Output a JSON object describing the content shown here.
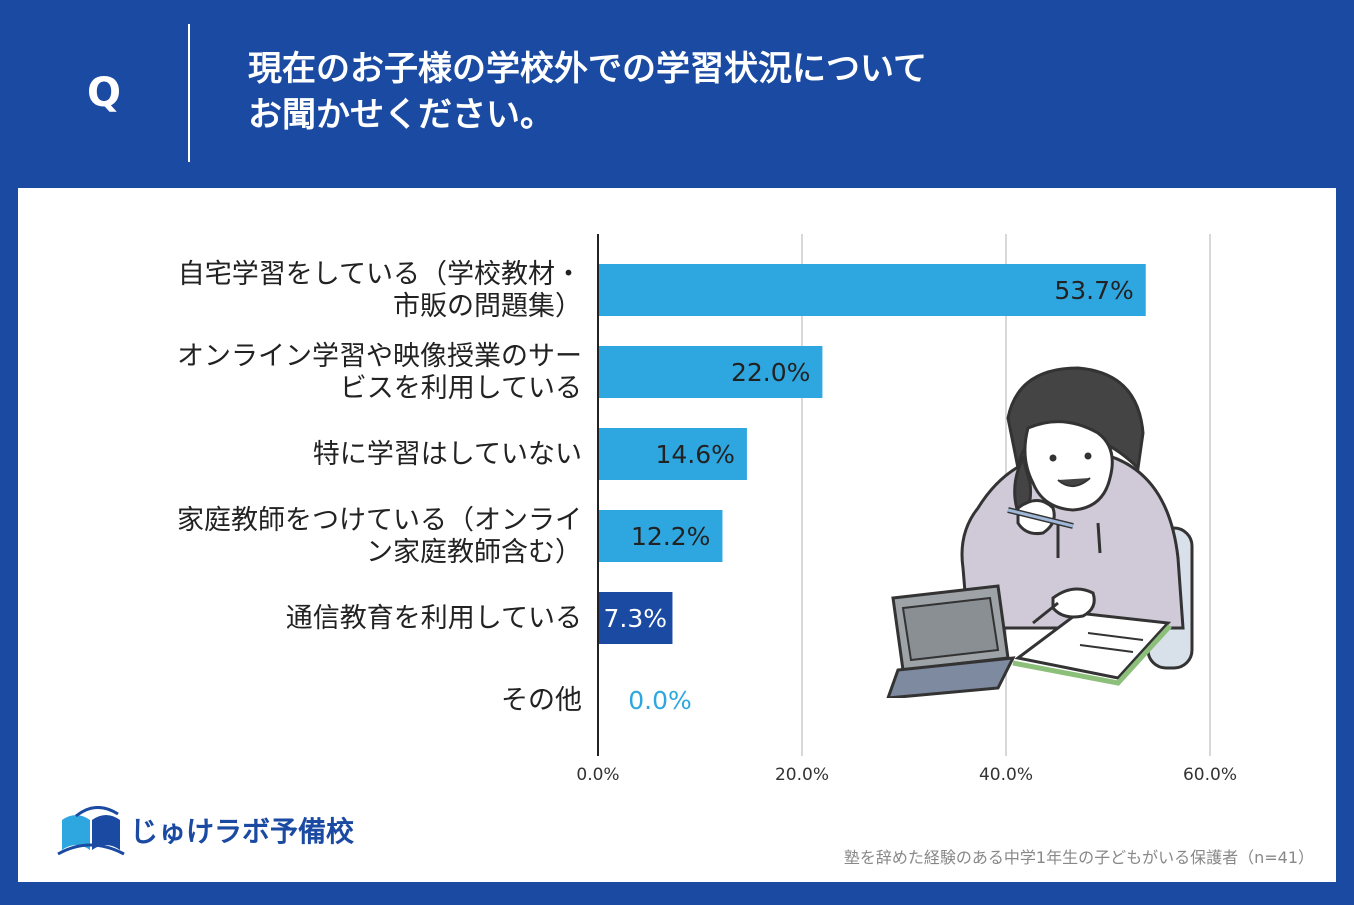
{
  "header": {
    "q_mark": "Q",
    "question_line1": "現在のお子様の学校外での学習状況について",
    "question_line2": "お聞かせください。"
  },
  "colors": {
    "background": "#1a4aa1",
    "bar_light": "#2ea7e0",
    "bar_dark": "#1a4aa1",
    "zero_label": "#2ea7e0"
  },
  "chart_data": {
    "type": "bar",
    "orientation": "horizontal",
    "categories": [
      [
        "自宅学習をしている（学校教材・",
        "市販の問題集）"
      ],
      [
        "オンライン学習や映像授業のサー",
        "ビスを利用している"
      ],
      [
        "特に学習はしていない"
      ],
      [
        "家庭教師をつけている（オンライ",
        "ン家庭教師含む）"
      ],
      [
        "通信教育を利用している"
      ],
      [
        "その他"
      ]
    ],
    "values": [
      53.7,
      22.0,
      14.6,
      12.2,
      7.3,
      0.0
    ],
    "value_labels": [
      "53.7%",
      "22.0%",
      "14.6%",
      "12.2%",
      "7.3%",
      "0.0%"
    ],
    "highlight_index": 4,
    "xlim": [
      0,
      60
    ],
    "xticks": [
      0,
      20,
      40,
      60
    ],
    "xtick_labels": [
      "0.0%",
      "20.0%",
      "40.0%",
      "60.0%"
    ],
    "grid": true
  },
  "logo": {
    "text": "じゅけラボ予備校",
    "icon": "open-book-icon"
  },
  "footnote": "塾を辞めた経験のある中学1年生の子どもがいる保護者（n=41）"
}
